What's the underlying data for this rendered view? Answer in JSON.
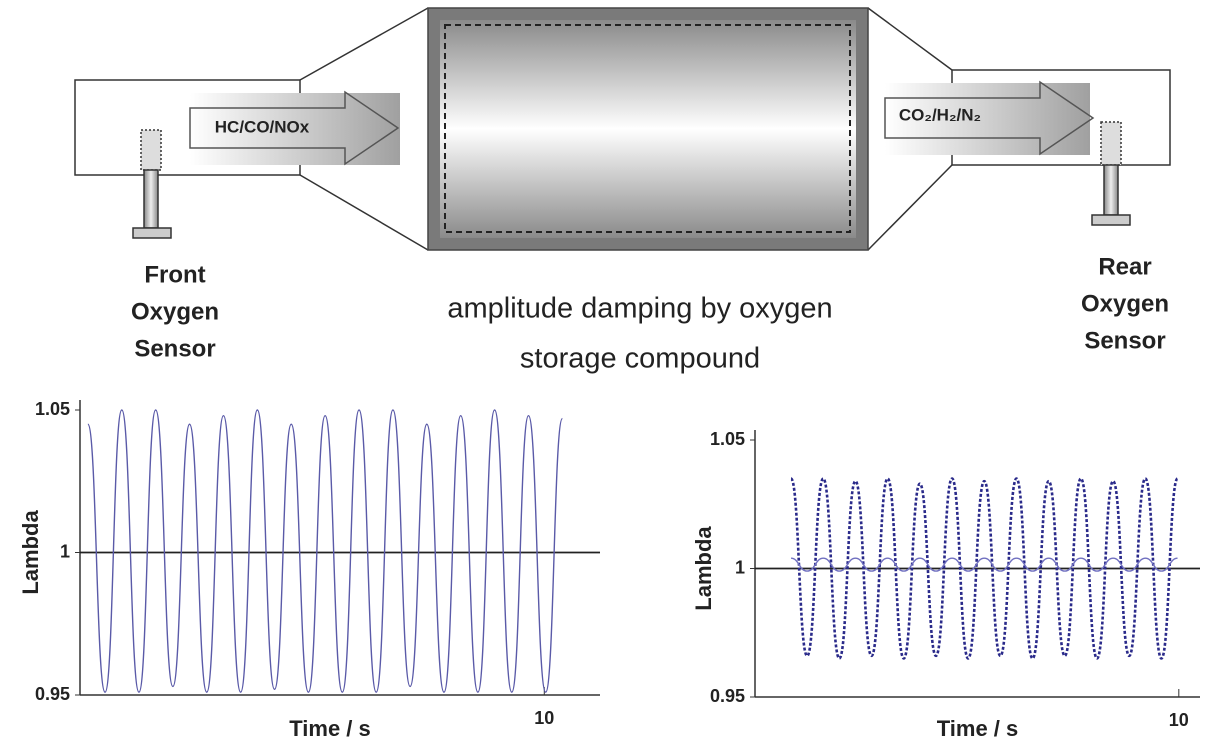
{
  "diagram": {
    "inlet_gas": "HC/CO/NOx",
    "outlet_gas": "CO₂/H₂/N₂",
    "front_sensor": [
      "Front",
      "Oxygen",
      "Sensor"
    ],
    "rear_sensor": [
      "Rear",
      "Oxygen",
      "Sensor"
    ],
    "caption": [
      "amplitude damping by oxygen",
      "storage compound"
    ]
  },
  "chart_data": [
    {
      "type": "line",
      "ylabel": "Lambda",
      "xlabel": "Time / s",
      "xlim": [
        0,
        11.2
      ],
      "xticks": [
        10
      ],
      "ylim": [
        0.95,
        1.05
      ],
      "yticks": [
        0.95,
        1,
        1.05
      ],
      "hline": 1,
      "x": [
        0.17,
        0.54,
        0.9,
        1.27,
        1.63,
        2.0,
        2.36,
        2.73,
        3.09,
        3.46,
        3.82,
        4.19,
        4.55,
        4.92,
        5.28,
        5.65,
        6.01,
        6.38,
        6.74,
        7.11,
        7.47,
        7.84,
        8.2,
        8.57,
        8.93,
        9.3,
        9.66,
        10.03,
        10.39
      ],
      "series": [
        {
          "color": "#5a5aa8",
          "style": "solid",
          "values": [
            1.045,
            0.951,
            1.05,
            0.951,
            1.05,
            0.953,
            1.045,
            0.951,
            1.048,
            0.951,
            1.05,
            0.952,
            1.045,
            0.951,
            1.048,
            0.951,
            1.05,
            0.951,
            1.05,
            0.953,
            1.045,
            0.951,
            1.048,
            0.951,
            1.05,
            0.951,
            1.048,
            0.951,
            1.047
          ]
        }
      ]
    },
    {
      "type": "line",
      "ylabel": "Lambda",
      "xlabel": "Time / s",
      "xlim": [
        0,
        10.5
      ],
      "xticks": [
        10
      ],
      "ylim": [
        0.95,
        1.05
      ],
      "yticks": [
        0.95,
        1,
        1.05
      ],
      "hline": 1,
      "x": [
        0.85,
        1.23,
        1.61,
        1.99,
        2.37,
        2.75,
        3.13,
        3.51,
        3.89,
        4.27,
        4.65,
        5.03,
        5.41,
        5.79,
        6.17,
        6.55,
        6.93,
        7.31,
        7.69,
        8.07,
        8.45,
        8.83,
        9.21,
        9.59,
        9.97
      ],
      "series": [
        {
          "color": "#2a2a8a",
          "style": "dotted",
          "values": [
            1.035,
            0.966,
            1.035,
            0.965,
            1.034,
            0.966,
            1.035,
            0.965,
            1.033,
            0.966,
            1.035,
            0.965,
            1.034,
            0.966,
            1.035,
            0.965,
            1.034,
            0.966,
            1.035,
            0.965,
            1.034,
            0.966,
            1.035,
            0.965,
            1.035
          ]
        },
        {
          "color": "#7070c0",
          "style": "solid",
          "values": [
            1.004,
            0.999,
            1.004,
            0.999,
            1.004,
            0.999,
            1.004,
            0.999,
            1.004,
            0.999,
            1.004,
            0.999,
            1.004,
            0.999,
            1.004,
            0.999,
            1.004,
            0.999,
            1.004,
            0.999,
            1.004,
            0.999,
            1.004,
            0.999,
            1.004
          ]
        }
      ]
    }
  ]
}
